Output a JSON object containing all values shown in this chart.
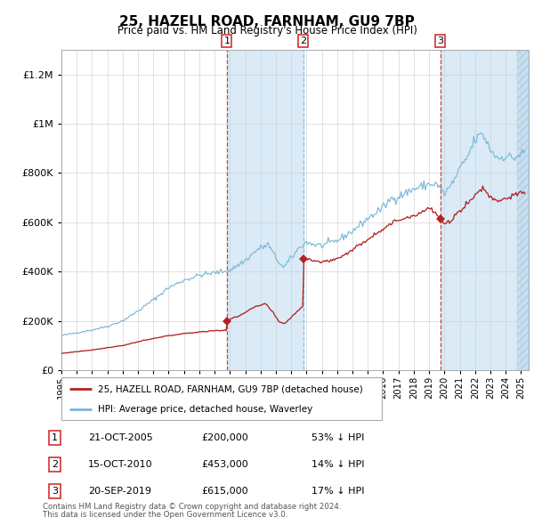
{
  "title": "25, HAZELL ROAD, FARNHAM, GU9 7BP",
  "subtitle": "Price paid vs. HM Land Registry's House Price Index (HPI)",
  "hpi_color": "#7ab8d9",
  "price_color": "#b22222",
  "shade_color": "#daeaf7",
  "hatch_color": "#c8dff0",
  "transactions": [
    {
      "num": 1,
      "date": "2005-10-21",
      "price": 200000,
      "t": 2005.8
    },
    {
      "num": 2,
      "date": "2010-10-15",
      "price": 453000,
      "t": 2010.79
    },
    {
      "num": 3,
      "date": "2019-09-20",
      "price": 615000,
      "t": 2019.72
    }
  ],
  "legend": [
    "25, HAZELL ROAD, FARNHAM, GU9 7BP (detached house)",
    "HPI: Average price, detached house, Waverley"
  ],
  "footer": [
    "Contains HM Land Registry data © Crown copyright and database right 2024.",
    "This data is licensed under the Open Government Licence v3.0."
  ],
  "table_rows": [
    {
      "num": 1,
      "date": "21-OCT-2005",
      "price": "£200,000",
      "hpi": "53% ↓ HPI"
    },
    {
      "num": 2,
      "date": "15-OCT-2010",
      "price": "£453,000",
      "hpi": "14% ↓ HPI"
    },
    {
      "num": 3,
      "date": "20-SEP-2019",
      "price": "£615,000",
      "hpi": "17% ↓ HPI"
    }
  ],
  "ylim": [
    0,
    1300000
  ],
  "yticks": [
    0,
    200000,
    400000,
    600000,
    800000,
    1000000,
    1200000
  ],
  "xstart": 1995,
  "xend": 2025.5
}
